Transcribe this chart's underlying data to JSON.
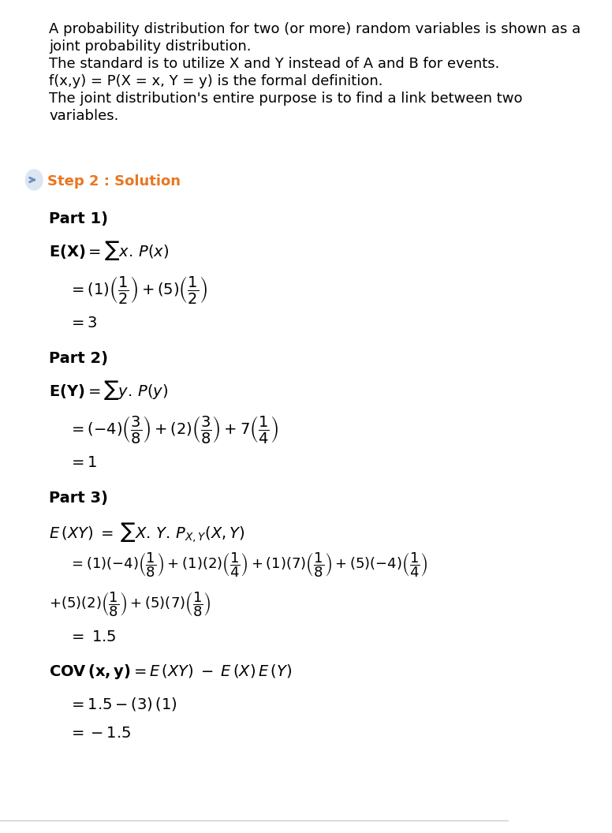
{
  "bg_color": "#ffffff",
  "text_color": "#000000",
  "step_color": "#e87722",
  "arrow_color": "#6c8ebf",
  "arrow_bg": "#dce6f0",
  "intro_lines": [
    "A probability distribution for two (or more) random variables is shown as a",
    "joint probability distribution.",
    "The standard is to utilize X and Y instead of A and B for events.",
    "f(x,y) = P(X = x, Y = y) is the formal definition.",
    "The joint distribution's entire purpose is to find a link between two",
    "variables."
  ],
  "step_label": "Step 2 : Solution",
  "font_size_intro": 13,
  "font_size_step": 13,
  "font_size_body": 13,
  "font_size_math": 13
}
